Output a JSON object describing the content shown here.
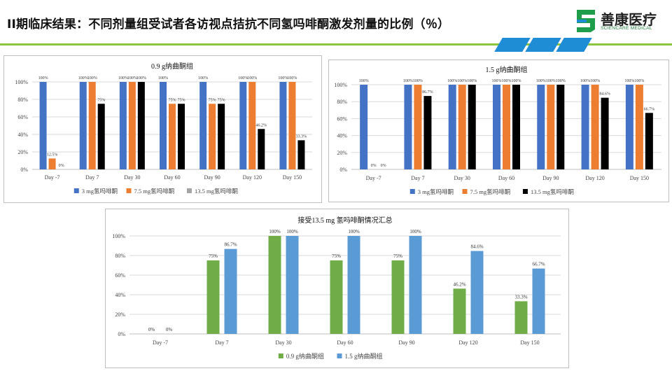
{
  "header": {
    "title": "II期临床结果：不同剂量组受试者各访视点拮抗不同氢吗啡酮激发剂量的比例（％）",
    "logo_text": "善康医疗",
    "logo_subtext": "SCIENCARE MEDICAL",
    "accent_green": "#8cc63f",
    "accent_blue": "#1f8dd6"
  },
  "chart_data": [
    {
      "type": "bar",
      "title": "0.9 g纳曲酮组",
      "categories": [
        "Day -7",
        "Day 7",
        "Day 30",
        "Day 60",
        "Day 90",
        "Day 120",
        "Day 150"
      ],
      "ylim": [
        0,
        100
      ],
      "yticks": [
        "0%",
        "20%",
        "40%",
        "60%",
        "80%",
        "100%"
      ],
      "series": [
        {
          "name": "3 mg氢吗啡酮",
          "color": "#4472c4",
          "values": [
            100,
            100,
            100,
            100,
            100,
            100,
            100
          ],
          "labels": [
            "100%",
            "100%",
            "100%",
            "100%",
            "100%",
            "100%",
            "100%"
          ]
        },
        {
          "name": "7.5 mg氢吗啡酮",
          "color": "#ed7d31",
          "values": [
            12.5,
            100,
            100,
            75,
            75,
            100,
            100
          ],
          "labels": [
            "12.5%",
            "100%",
            "100%",
            "75%",
            "75%",
            "100%",
            "100%"
          ]
        },
        {
          "name": "13.5 mg氢吗啡酮",
          "color": "#000000",
          "legend_color": "#a5a5a5",
          "values": [
            0,
            75,
            100,
            75,
            75,
            46.2,
            33.3
          ],
          "labels": [
            "0%",
            "75%",
            "100%",
            "75%",
            "75%",
            "46.2%",
            "33.3%"
          ]
        }
      ]
    },
    {
      "type": "bar",
      "title": "1.5 g纳曲酮组",
      "categories": [
        "Day -7",
        "Day 7",
        "Day 30",
        "Day 60",
        "Day 90",
        "Day 120",
        "Day 150"
      ],
      "ylim": [
        0,
        100
      ],
      "yticks": [
        "0%",
        "20%",
        "40%",
        "60%",
        "80%",
        "100%"
      ],
      "series": [
        {
          "name": "3 mg氢吗啡酮",
          "color": "#4472c4",
          "values": [
            100,
            100,
            100,
            100,
            100,
            100,
            100
          ],
          "labels": [
            "100%",
            "100%",
            "100%",
            "100%",
            "100%",
            "100%",
            "100%"
          ]
        },
        {
          "name": "7.5 mg氢吗啡酮",
          "color": "#ed7d31",
          "values": [
            0,
            100,
            100,
            100,
            100,
            100,
            100
          ],
          "labels": [
            "0%",
            "100%",
            "100%",
            "100%",
            "100%",
            "100%",
            "100%"
          ]
        },
        {
          "name": "13.5 mg氢吗啡酮",
          "color": "#000000",
          "values": [
            0,
            86.7,
            100,
            100,
            100,
            84.6,
            66.7
          ],
          "labels": [
            "0%",
            "86.7%",
            "100%",
            "100%",
            "100%",
            "84.6%",
            "66.7%"
          ]
        }
      ]
    },
    {
      "type": "bar",
      "title": "接受13.5 mg 氢吗啡酮情况汇总",
      "categories": [
        "Day -7",
        "Day 7",
        "Day 30",
        "Day 60",
        "Day 90",
        "Day 120",
        "Day 150"
      ],
      "ylim": [
        0,
        100
      ],
      "yticks": [
        "0%",
        "20%",
        "40%",
        "60%",
        "80%",
        "100%"
      ],
      "series": [
        {
          "name": "0.9 g纳曲酮组",
          "color": "#70ad47",
          "values": [
            0,
            75,
            100,
            75,
            75,
            46.2,
            33.3
          ],
          "labels": [
            "0%",
            "75%",
            "100%",
            "75%",
            "75%",
            "46.2%",
            "33.3%"
          ]
        },
        {
          "name": "1.5 g纳曲酮组",
          "color": "#5b9bd5",
          "values": [
            0,
            86.7,
            100,
            100,
            100,
            84.6,
            66.7
          ],
          "labels": [
            "0%",
            "86.7%",
            "100%",
            "100%",
            "100%",
            "84.6%",
            "66.7%"
          ]
        }
      ]
    }
  ]
}
